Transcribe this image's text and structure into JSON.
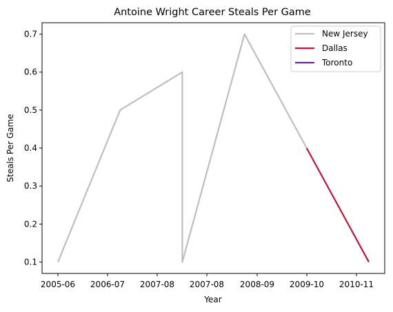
{
  "chart_data": {
    "type": "line",
    "title": "Antoine Wright  Career Steals Per Game",
    "xlabel": "Year",
    "ylabel": "Steals Per Game",
    "categories": [
      "2005-06",
      "2006-07",
      "2007-08",
      "2007-08",
      "2008-09",
      "2009-10",
      "2010-11"
    ],
    "ylim": [
      0.07,
      0.73
    ],
    "yticks": [
      0.1,
      0.2,
      0.3,
      0.4,
      0.5,
      0.6,
      0.7
    ],
    "ytick_labels": [
      "0.1",
      "0.2",
      "0.3",
      "0.4",
      "0.5",
      "0.6",
      "0.7"
    ],
    "grid": false,
    "legend_position": "top-right",
    "series": [
      {
        "name": "New Jersey",
        "color": "#BEBEBE",
        "points": [
          {
            "x": 0.0,
            "y": 0.1
          },
          {
            "x": 1.0,
            "y": 0.5
          },
          {
            "x": 2.0,
            "y": 0.6
          },
          {
            "x": 2.0,
            "y": 0.1
          },
          {
            "x": 3.0,
            "y": 0.7
          },
          {
            "x": 4.0,
            "y": 0.4
          }
        ]
      },
      {
        "name": "Dallas",
        "color": "#C8102E",
        "points": [
          {
            "x": 4.0,
            "y": 0.4
          },
          {
            "x": 5.0,
            "y": 0.1
          }
        ]
      },
      {
        "name": "Toronto",
        "color": "#5C2D82",
        "points": []
      }
    ]
  }
}
